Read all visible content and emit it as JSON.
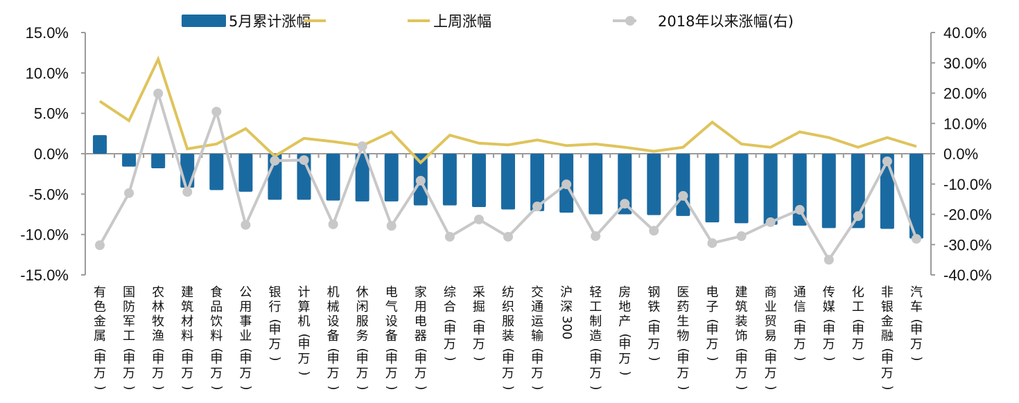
{
  "chart_data": {
    "type": "bar",
    "title": "",
    "xlabel": "",
    "ylabel": "",
    "ylim": [
      -15,
      15
    ],
    "y2lim": [
      -40,
      40
    ],
    "yticks": [
      "15.0%",
      "10.0%",
      "5.0%",
      "0.0%",
      "-5.0%",
      "-10.0%",
      "-15.0%"
    ],
    "y2ticks": [
      "40.0%",
      "30.0%",
      "20.0%",
      "10.0%",
      "0.0%",
      "-10.0%",
      "-20.0%",
      "-30.0%",
      "-40.0%"
    ],
    "grid": false,
    "legend_position": "top",
    "categories": [
      "有色金属(申万)",
      "国防军工(申万)",
      "农林牧渔(申万)",
      "建筑材料(申万)",
      "食品饮料(申万)",
      "公用事业(申万)",
      "银行(申万)",
      "计算机(申万)",
      "机械设备(申万)",
      "休闲服务(申万)",
      "电气设备(申万)",
      "家用电器(申万)",
      "综合(申万)",
      "采掘(申万)",
      "纺织服装(申万)",
      "交通运输(申万)",
      "沪深300",
      "轻工制造(申万)",
      "房地产(申万)",
      "钢铁(申万)",
      "医药生物(申万)",
      "电子(申万)",
      "建筑装饰(申万)",
      "商业贸易(申万)",
      "通信(申万)",
      "传媒(申万)",
      "化工(申万)",
      "非银金融(申万)",
      "汽车(申万)"
    ],
    "series": [
      {
        "name": "5月累计涨幅",
        "type": "bar",
        "axis": "left",
        "color": "#1a6aa2",
        "values": [
          2.3,
          -1.6,
          -1.8,
          -4.2,
          -4.5,
          -4.7,
          -5.7,
          -5.7,
          -5.8,
          -5.9,
          -5.9,
          -6.4,
          -6.4,
          -6.6,
          -6.9,
          -7.1,
          -7.3,
          -7.5,
          -7.5,
          -7.6,
          -7.7,
          -8.5,
          -8.6,
          -8.8,
          -8.9,
          -9.2,
          -9.2,
          -9.3,
          -10.5
        ]
      },
      {
        "name": "上周涨幅",
        "type": "line",
        "axis": "left",
        "color": "#dfc45c",
        "values": [
          6.5,
          4.1,
          11.7,
          0.6,
          1.2,
          3.1,
          -0.3,
          1.9,
          1.5,
          1.0,
          2.7,
          -1.1,
          2.3,
          1.3,
          1.1,
          1.7,
          1.0,
          1.2,
          0.8,
          0.3,
          0.8,
          3.9,
          1.2,
          0.8,
          2.7,
          2.0,
          0.8,
          2.0,
          0.9
        ]
      },
      {
        "name": "2018年以来涨幅(右)",
        "type": "line-marker",
        "axis": "right",
        "color": "#c8c8c8",
        "values": [
          -30.2,
          -13.0,
          19.9,
          -12.6,
          13.9,
          -23.5,
          -2.3,
          -2.1,
          -23.3,
          2.5,
          -23.8,
          -8.9,
          -27.4,
          -21.7,
          -27.4,
          -17.4,
          -10.1,
          -27.2,
          -16.5,
          -25.4,
          -13.9,
          -29.5,
          -27.2,
          -22.6,
          -18.5,
          -35.0,
          -20.6,
          -2.5,
          -28.1
        ]
      }
    ]
  },
  "legend": {
    "bar_label": "5月累计涨幅",
    "week_label": "上周涨幅",
    "ytd_label": "2018年以来涨幅(右)"
  },
  "colors": {
    "bar": "#1a6aa2",
    "week_line": "#dfc45c",
    "ytd_line": "#c8c8c8",
    "axis": "#9a9a9a"
  }
}
